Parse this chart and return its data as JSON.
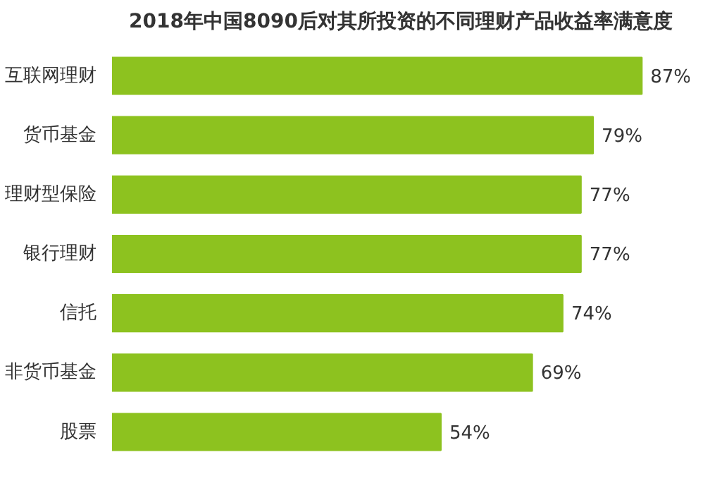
{
  "chart_data": {
    "type": "bar",
    "orientation": "horizontal",
    "title": "2018年中国8090后对其所投资的不同理财产品收益率满意度",
    "categories": [
      "互联网理财",
      "货币基金",
      "理财型保险",
      "银行理财",
      "信托",
      "非货币基金",
      "股票"
    ],
    "values": [
      87,
      79,
      77,
      77,
      74,
      69,
      54
    ],
    "value_labels": [
      "87%",
      "79%",
      "77%",
      "77%",
      "74%",
      "69%",
      "54%"
    ],
    "color": "#8dc21f",
    "grid": false
  }
}
